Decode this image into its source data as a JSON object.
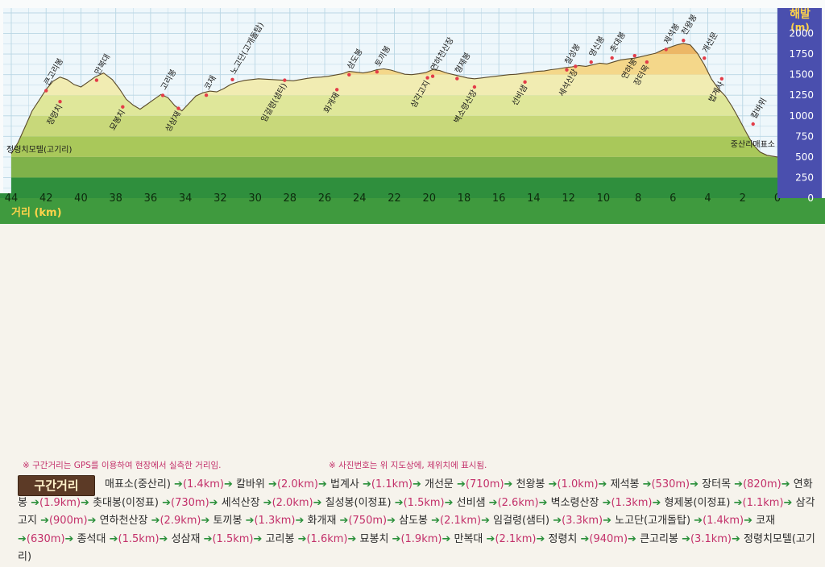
{
  "chart_data": {
    "type": "area",
    "ylabel": "해발\n(m)",
    "xlabel": "거리 (km)",
    "xlim": [
      44,
      0
    ],
    "ylim": [
      0,
      2250
    ],
    "xticks": [
      44,
      42,
      40,
      38,
      36,
      34,
      32,
      30,
      28,
      26,
      24,
      22,
      20,
      18,
      16,
      14,
      12,
      10,
      8,
      6,
      4,
      2,
      0
    ],
    "yticks": [
      0,
      250,
      500,
      750,
      1000,
      1250,
      1500,
      1750,
      2000
    ],
    "profile": [
      [
        44.0,
        540
      ],
      [
        43.6,
        680
      ],
      [
        43.2,
        870
      ],
      [
        42.8,
        1060
      ],
      [
        42.4,
        1190
      ],
      [
        42.0,
        1320
      ],
      [
        41.6,
        1420
      ],
      [
        41.2,
        1470
      ],
      [
        40.8,
        1440
      ],
      [
        40.4,
        1380
      ],
      [
        40.0,
        1350
      ],
      [
        39.6,
        1410
      ],
      [
        39.2,
        1470
      ],
      [
        38.7,
        1520
      ],
      [
        38.2,
        1440
      ],
      [
        37.8,
        1330
      ],
      [
        37.4,
        1200
      ],
      [
        37.0,
        1130
      ],
      [
        36.6,
        1080
      ],
      [
        36.2,
        1140
      ],
      [
        35.8,
        1200
      ],
      [
        35.4,
        1260
      ],
      [
        35.0,
        1220
      ],
      [
        34.6,
        1120
      ],
      [
        34.2,
        1060
      ],
      [
        33.8,
        1150
      ],
      [
        33.4,
        1240
      ],
      [
        33.0,
        1280
      ],
      [
        32.6,
        1300
      ],
      [
        32.2,
        1290
      ],
      [
        31.8,
        1330
      ],
      [
        31.4,
        1380
      ],
      [
        31.0,
        1410
      ],
      [
        30.6,
        1430
      ],
      [
        30.2,
        1440
      ],
      [
        29.8,
        1450
      ],
      [
        29.4,
        1445
      ],
      [
        29.0,
        1440
      ],
      [
        28.6,
        1435
      ],
      [
        28.2,
        1430
      ],
      [
        27.8,
        1425
      ],
      [
        27.4,
        1440
      ],
      [
        27.0,
        1455
      ],
      [
        26.6,
        1465
      ],
      [
        26.2,
        1470
      ],
      [
        25.8,
        1480
      ],
      [
        25.4,
        1495
      ],
      [
        25.0,
        1510
      ],
      [
        24.6,
        1540
      ],
      [
        24.2,
        1530
      ],
      [
        23.8,
        1520
      ],
      [
        23.4,
        1535
      ],
      [
        23.0,
        1560
      ],
      [
        22.6,
        1570
      ],
      [
        22.2,
        1555
      ],
      [
        21.8,
        1530
      ],
      [
        21.4,
        1505
      ],
      [
        21.0,
        1500
      ],
      [
        20.6,
        1510
      ],
      [
        20.2,
        1525
      ],
      [
        19.8,
        1560
      ],
      [
        19.4,
        1550
      ],
      [
        19.0,
        1520
      ],
      [
        18.6,
        1500
      ],
      [
        18.2,
        1480
      ],
      [
        17.8,
        1460
      ],
      [
        17.4,
        1450
      ],
      [
        17.0,
        1460
      ],
      [
        16.6,
        1470
      ],
      [
        16.2,
        1480
      ],
      [
        15.8,
        1490
      ],
      [
        15.4,
        1500
      ],
      [
        15.0,
        1505
      ],
      [
        14.6,
        1515
      ],
      [
        14.2,
        1525
      ],
      [
        13.8,
        1540
      ],
      [
        13.4,
        1545
      ],
      [
        13.0,
        1560
      ],
      [
        12.6,
        1570
      ],
      [
        12.2,
        1585
      ],
      [
        11.8,
        1595
      ],
      [
        11.4,
        1610
      ],
      [
        11.0,
        1600
      ],
      [
        10.6,
        1620
      ],
      [
        10.2,
        1640
      ],
      [
        9.8,
        1630
      ],
      [
        9.4,
        1655
      ],
      [
        9.0,
        1680
      ],
      [
        8.6,
        1690
      ],
      [
        8.2,
        1700
      ],
      [
        7.8,
        1720
      ],
      [
        7.4,
        1740
      ],
      [
        7.0,
        1760
      ],
      [
        6.6,
        1800
      ],
      [
        6.2,
        1830
      ],
      [
        5.8,
        1860
      ],
      [
        5.4,
        1880
      ],
      [
        5.0,
        1860
      ],
      [
        4.6,
        1760
      ],
      [
        4.2,
        1620
      ],
      [
        3.8,
        1450
      ],
      [
        3.4,
        1330
      ],
      [
        3.0,
        1240
      ],
      [
        2.6,
        1110
      ],
      [
        2.2,
        960
      ],
      [
        1.8,
        800
      ],
      [
        1.4,
        650
      ],
      [
        1.0,
        560
      ],
      [
        0.6,
        520
      ],
      [
        0.0,
        500
      ]
    ],
    "grid": true,
    "series": [
      {
        "name": "정령치모텔(고기리)",
        "x": 43.8,
        "y": 540
      },
      {
        "name": "큰고리봉",
        "x": 42.0,
        "y": 1305
      },
      {
        "name": "정령치",
        "x": 41.2,
        "y": 1172
      },
      {
        "name": "만복대",
        "x": 39.1,
        "y": 1433
      },
      {
        "name": "묘봉치",
        "x": 37.6,
        "y": 1108
      },
      {
        "name": "고리봉",
        "x": 35.3,
        "y": 1248
      },
      {
        "name": "성삼재",
        "x": 34.4,
        "y": 1090
      },
      {
        "name": "코재",
        "x": 32.8,
        "y": 1250
      },
      {
        "name": "노고단(고개돌탑)",
        "x": 31.3,
        "y": 1440
      },
      {
        "name": "임걸령(샘터)",
        "x": 28.3,
        "y": 1432
      },
      {
        "name": "화개재",
        "x": 25.3,
        "y": 1318
      },
      {
        "name": "삼도봉",
        "x": 24.6,
        "y": 1499
      },
      {
        "name": "토끼봉",
        "x": 23.0,
        "y": 1534
      },
      {
        "name": "삼각고지",
        "x": 20.1,
        "y": 1462
      },
      {
        "name": "연하천산장",
        "x": 19.8,
        "y": 1480
      },
      {
        "name": "형제봉",
        "x": 18.4,
        "y": 1452
      },
      {
        "name": "벽소령산장",
        "x": 17.4,
        "y": 1350
      },
      {
        "name": "선비샘",
        "x": 14.5,
        "y": 1410
      },
      {
        "name": "칠성봉",
        "x": 12.1,
        "y": 1558
      },
      {
        "name": "세석산장",
        "x": 11.6,
        "y": 1600
      },
      {
        "name": "영신봉",
        "x": 10.7,
        "y": 1652
      },
      {
        "name": "촛대봉",
        "x": 9.5,
        "y": 1703
      },
      {
        "name": "연하봉",
        "x": 8.2,
        "y": 1730
      },
      {
        "name": "장터목",
        "x": 7.5,
        "y": 1653
      },
      {
        "name": "제석봉",
        "x": 6.4,
        "y": 1806
      },
      {
        "name": "천왕봉",
        "x": 5.4,
        "y": 1915
      },
      {
        "name": "개선문",
        "x": 4.2,
        "y": 1700
      },
      {
        "name": "법계사",
        "x": 3.2,
        "y": 1450
      },
      {
        "name": "칼바위",
        "x": 1.4,
        "y": 900
      },
      {
        "name": "중산리매표소",
        "x": 0.6,
        "y": 600
      }
    ]
  },
  "notes": {
    "left": "※ 구간거리는 GPS를 이용하여 현장에서 실측한 거리임.",
    "right": "※ 사진번호는 위 지도상에, 제위치에 표시됨."
  },
  "section_label": "구간거리",
  "route_segments": [
    {
      "from": "매표소(중산리)",
      "dist": "(1.4km)"
    },
    {
      "from": "칼바위",
      "dist": "(2.0km)"
    },
    {
      "from": "법계사",
      "dist": "(1.1km)"
    },
    {
      "from": "개선문",
      "dist": "(710m)"
    },
    {
      "from": "천왕봉",
      "dist": "(1.0km)"
    },
    {
      "from": "제석봉",
      "dist": "(530m)"
    },
    {
      "from": "장터목",
      "dist": "(820m)"
    },
    {
      "from": "연화봉",
      "dist": "(1.9km)"
    },
    {
      "from": "촛대봉(이정표)",
      "dist": "(730m)"
    },
    {
      "from": "세석산장",
      "dist": "(2.0km)"
    },
    {
      "from": "칠성봉(이정표)",
      "dist": "(1.5km)"
    },
    {
      "from": "선비샘",
      "dist": "(2.6km)"
    },
    {
      "from": "벽소령산장",
      "dist": "(1.3km)"
    },
    {
      "from": "형제봉(이정표)",
      "dist": "(1.1km)"
    },
    {
      "from": "삼각고지",
      "dist": "(900m)"
    },
    {
      "from": "연하천산장",
      "dist": "(2.9km)"
    },
    {
      "from": "토끼봉",
      "dist": "(1.3km)"
    },
    {
      "from": "화개재",
      "dist": "(750m)"
    },
    {
      "from": "삼도봉",
      "dist": "(2.1km)"
    },
    {
      "from": "임걸령(샘터)",
      "dist": "(3.3km)"
    },
    {
      "from": "노고단(고개돌탑)",
      "dist": "(1.4km)"
    },
    {
      "from": "코재",
      "dist": "(630m)"
    },
    {
      "from": "종석대",
      "dist": "(1.5km)"
    },
    {
      "from": "성삼재",
      "dist": "(1.5km)"
    },
    {
      "from": "고리봉",
      "dist": "(1.6km)"
    },
    {
      "from": "묘봉치",
      "dist": "(1.9km)"
    },
    {
      "from": "만복대",
      "dist": "(2.1km)"
    },
    {
      "from": "정령치",
      "dist": "(940m)"
    },
    {
      "from": "큰고리봉",
      "dist": "(3.1km)"
    }
  ],
  "route_end": "정령치모텔(고기리)",
  "colors": {
    "sky": "#eef7fb",
    "grid": "#b9d6e4",
    "axis_panel": "#4a4fae",
    "axis_text": "#ffffff",
    "ylabel_text": "#ffd34a",
    "band_green": "#2f8f3d",
    "dot": "#e33c48"
  }
}
